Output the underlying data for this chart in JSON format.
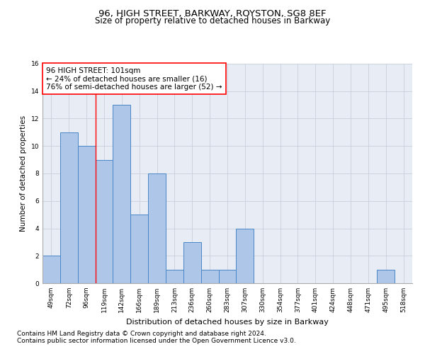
{
  "title": "96, HIGH STREET, BARKWAY, ROYSTON, SG8 8EF",
  "subtitle": "Size of property relative to detached houses in Barkway",
  "xlabel": "Distribution of detached houses by size in Barkway",
  "ylabel": "Number of detached properties",
  "categories": [
    "49sqm",
    "72sqm",
    "96sqm",
    "119sqm",
    "142sqm",
    "166sqm",
    "189sqm",
    "213sqm",
    "236sqm",
    "260sqm",
    "283sqm",
    "307sqm",
    "330sqm",
    "354sqm",
    "377sqm",
    "401sqm",
    "424sqm",
    "448sqm",
    "471sqm",
    "495sqm",
    "518sqm"
  ],
  "values": [
    2,
    11,
    10,
    9,
    13,
    5,
    8,
    1,
    3,
    1,
    1,
    4,
    0,
    0,
    0,
    0,
    0,
    0,
    0,
    1,
    0
  ],
  "bar_color": "#aec6e8",
  "bar_edge_color": "#4a86c8",
  "highlight_index": 2,
  "red_line_x": 2,
  "annotation_line1": "96 HIGH STREET: 101sqm",
  "annotation_line2": "← 24% of detached houses are smaller (16)",
  "annotation_line3": "76% of semi-detached houses are larger (52) →",
  "annotation_box_color": "white",
  "annotation_box_edge": "red",
  "ylim": [
    0,
    16
  ],
  "yticks": [
    0,
    2,
    4,
    6,
    8,
    10,
    12,
    14,
    16
  ],
  "grid_color": "#c8d0dc",
  "footnote1": "Contains HM Land Registry data © Crown copyright and database right 2024.",
  "footnote2": "Contains public sector information licensed under the Open Government Licence v3.0.",
  "title_fontsize": 9.5,
  "subtitle_fontsize": 8.5,
  "xlabel_fontsize": 8,
  "ylabel_fontsize": 7.5,
  "tick_fontsize": 6.5,
  "annotation_fontsize": 7.5,
  "footnote_fontsize": 6.5,
  "bg_color": "#e8edf5"
}
